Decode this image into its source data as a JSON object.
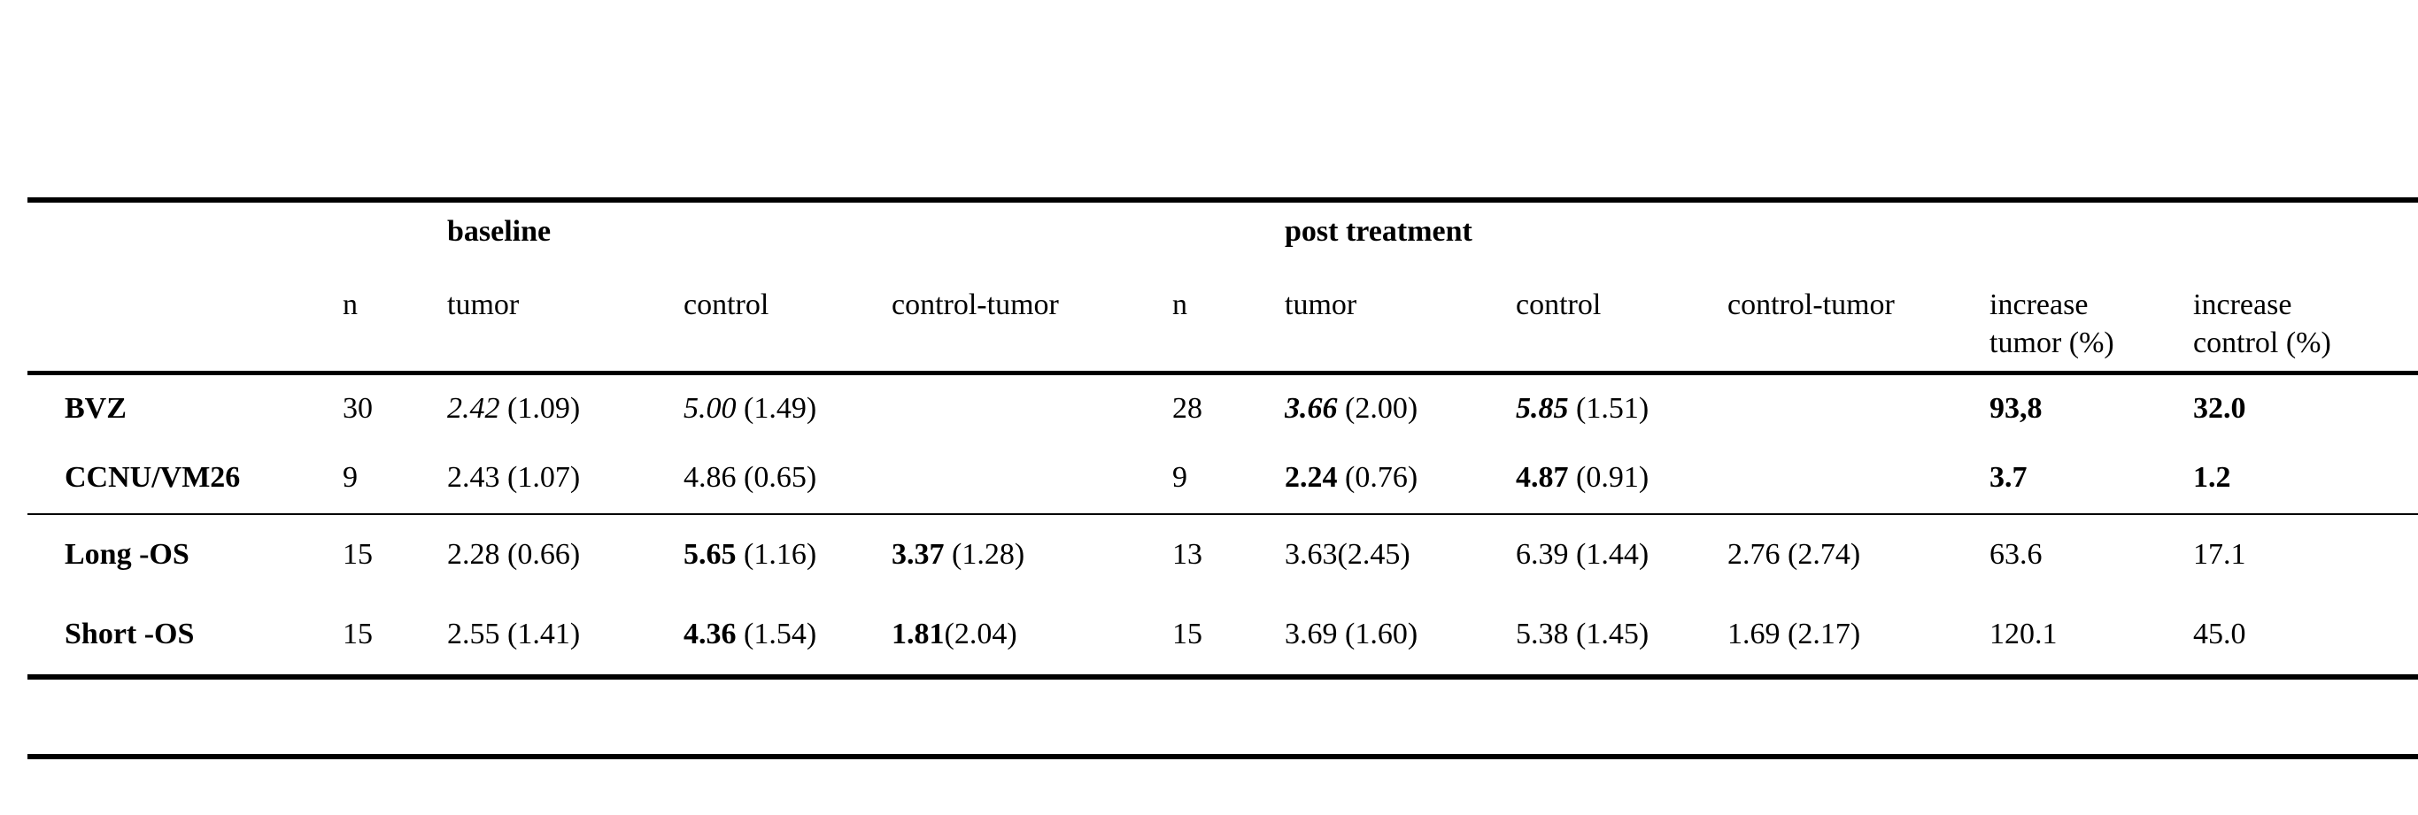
{
  "page": {
    "background_color": "#ffffff",
    "text_color": "#000000"
  },
  "table": {
    "group_header": {
      "baseline_label": "baseline",
      "post_label": "post treatment"
    },
    "column_headers": [
      "",
      "n",
      "tumor",
      "control",
      "control-tumor",
      "n",
      "tumor",
      "control",
      "control-tumor",
      "increase\ntumor (%)",
      "increase\ncontrol (%)"
    ],
    "rows": [
      {
        "label": "BVZ",
        "cells": [
          {
            "text": "30"
          },
          {
            "value": "2.42",
            "style": "italic",
            "paren": " (1.09)"
          },
          {
            "value": "5.00",
            "style": "italic",
            "paren": " (1.49)"
          },
          {
            "text": ""
          },
          {
            "text": "28"
          },
          {
            "value": "3.66",
            "style": "bold-italic",
            "paren": " (2.00)"
          },
          {
            "value": "5.85",
            "style": "bold-italic",
            "paren": " (1.51)"
          },
          {
            "text": ""
          },
          {
            "value": "93,8",
            "style": "bold",
            "paren": ""
          },
          {
            "value": "32.0",
            "style": "bold",
            "paren": ""
          }
        ]
      },
      {
        "label": "CCNU/VM26",
        "cells": [
          {
            "text": "9"
          },
          {
            "text": "2.43 (1.07)"
          },
          {
            "text": "4.86 (0.65)"
          },
          {
            "text": ""
          },
          {
            "text": "9"
          },
          {
            "value": "2.24",
            "style": "bold",
            "paren": " (0.76)"
          },
          {
            "value": "4.87",
            "style": "bold",
            "paren": " (0.91)"
          },
          {
            "text": ""
          },
          {
            "value": "3.7",
            "style": "bold",
            "paren": ""
          },
          {
            "value": "1.2",
            "style": "bold",
            "paren": ""
          }
        ]
      },
      {
        "label": "Long -OS",
        "cells": [
          {
            "text": "15"
          },
          {
            "text": "2.28 (0.66)"
          },
          {
            "value": "5.65",
            "style": "bold",
            "paren": " (1.16)"
          },
          {
            "value": "3.37",
            "style": "bold",
            "paren": " (1.28)"
          },
          {
            "text": "13"
          },
          {
            "text": "3.63(2.45)"
          },
          {
            "text": "6.39 (1.44)"
          },
          {
            "text": "2.76 (2.74)"
          },
          {
            "text": "63.6"
          },
          {
            "text": "17.1"
          }
        ]
      },
      {
        "label": "Short -OS",
        "cells": [
          {
            "text": "15"
          },
          {
            "text": "2.55 (1.41)"
          },
          {
            "value": "4.36",
            "style": "bold",
            "paren": " (1.54)"
          },
          {
            "value": "1.81",
            "style": "bold",
            "paren": "(2.04)"
          },
          {
            "text": "15"
          },
          {
            "text": "3.69 (1.60)"
          },
          {
            "text": "5.38 (1.45)"
          },
          {
            "text": "1.69 (2.17)"
          },
          {
            "text": "120.1"
          },
          {
            "text": "45.0"
          }
        ]
      }
    ]
  }
}
